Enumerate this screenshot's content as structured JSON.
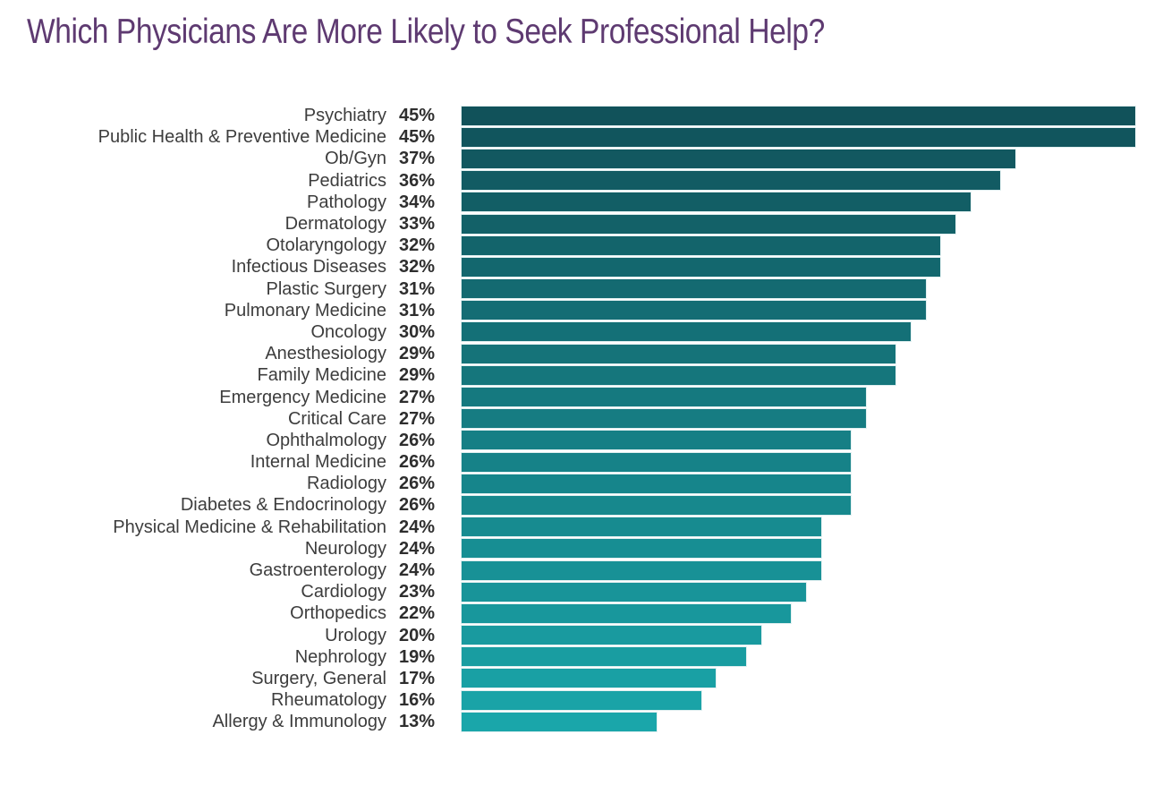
{
  "title": {
    "text": "Which Physicians Are More Likely to Seek Professional Help?",
    "color": "#5e3a71"
  },
  "chart_data": {
    "type": "bar",
    "orientation": "horizontal",
    "title": "Which Physicians Are More Likely to Seek Professional Help?",
    "value_suffix": "%",
    "xlim": [
      0,
      45
    ],
    "grid": false,
    "legend": false,
    "categories": [
      "Psychiatry",
      "Public Health & Preventive Medicine",
      "Ob/Gyn",
      "Pediatrics",
      "Pathology",
      "Dermatology",
      "Otolaryngology",
      "Infectious Diseases",
      "Plastic Surgery",
      "Pulmonary Medicine",
      "Oncology",
      "Anesthesiology",
      "Family Medicine",
      "Emergency Medicine",
      "Critical Care",
      "Ophthalmology",
      "Internal Medicine",
      "Radiology",
      "Diabetes & Endocrinology",
      "Physical Medicine & Rehabilitation",
      "Neurology",
      "Gastroenterology",
      "Cardiology",
      "Orthopedics",
      "Urology",
      "Nephrology",
      "Surgery, General",
      "Rheumatology",
      "Allergy & Immunology"
    ],
    "values": [
      45,
      45,
      37,
      36,
      34,
      33,
      32,
      32,
      31,
      31,
      30,
      29,
      29,
      27,
      27,
      26,
      26,
      26,
      26,
      24,
      24,
      24,
      23,
      22,
      20,
      19,
      17,
      16,
      13
    ],
    "colors": {
      "bar_gradient_start": "#11525a",
      "bar_gradient_end": "#1aa6aa",
      "category_label": "#3d3d3d",
      "value_label": "#2e2e2e"
    }
  }
}
